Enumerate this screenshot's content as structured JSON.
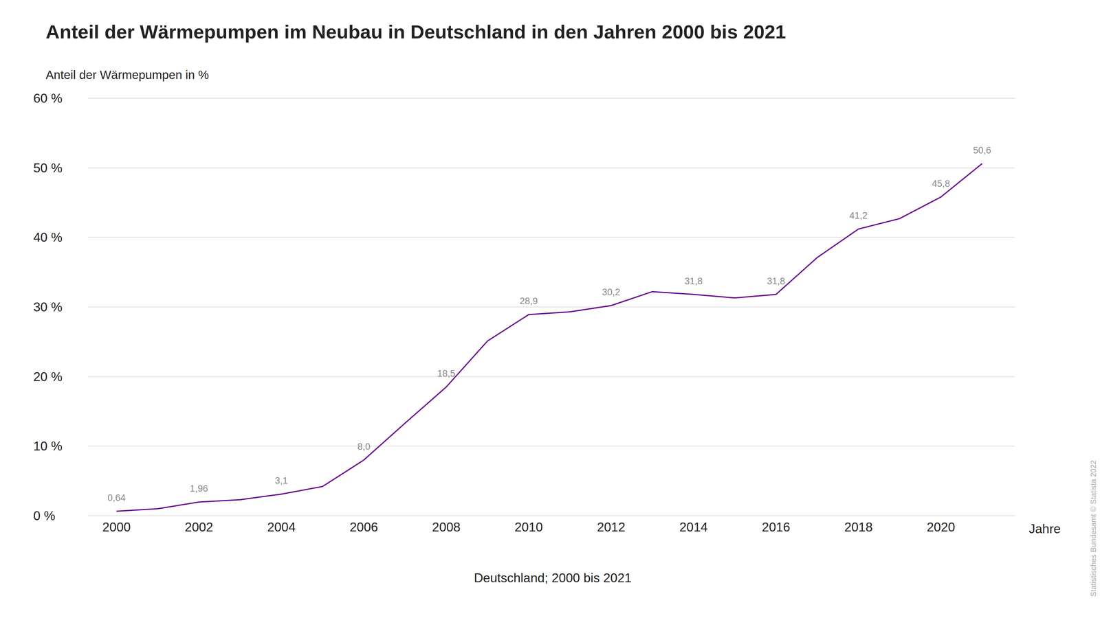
{
  "chart_data": {
    "type": "line",
    "title": "Anteil der Wärmepumpen im Neubau in Deutschland in den Jahren 2000 bis 2021",
    "y_label": "Anteil der Wärmepumpen in %",
    "x_label": "Jahre",
    "caption": "Deutschland; 2000 bis 2021",
    "source": "Statistisches Bundesamt © Statista 2022",
    "x": [
      2000,
      2001,
      2002,
      2003,
      2004,
      2005,
      2006,
      2007,
      2008,
      2009,
      2010,
      2011,
      2012,
      2013,
      2014,
      2015,
      2016,
      2017,
      2018,
      2019,
      2020,
      2021
    ],
    "values": [
      0.64,
      1.0,
      1.96,
      2.3,
      3.1,
      4.2,
      8.0,
      13.3,
      18.5,
      25.1,
      28.9,
      29.3,
      30.2,
      32.2,
      31.8,
      31.3,
      31.8,
      37.1,
      41.2,
      42.7,
      45.8,
      50.6
    ],
    "value_labels": [
      "0,64",
      null,
      "1,96",
      null,
      "3,1",
      null,
      "8,0",
      null,
      "18,5",
      null,
      "28,9",
      null,
      "30,2",
      null,
      "31,8",
      null,
      "31,8",
      null,
      "41,2",
      null,
      "45,8",
      "50,6"
    ],
    "data_labels": true,
    "color": "#68078f",
    "xlim": [
      1999.3,
      2021.8
    ],
    "xticks": [
      2000,
      2002,
      2004,
      2006,
      2008,
      2010,
      2012,
      2014,
      2016,
      2018,
      2020
    ],
    "ylim": [
      0,
      60
    ],
    "yticks": [
      {
        "value": 0,
        "label": "0 %"
      },
      {
        "value": 10,
        "label": "10 %"
      },
      {
        "value": 20,
        "label": "20 %"
      },
      {
        "value": 30,
        "label": "30 %"
      },
      {
        "value": 40,
        "label": "40 %"
      },
      {
        "value": 50,
        "label": "50 %"
      },
      {
        "value": 60,
        "label": "60 %"
      }
    ],
    "grid": true
  }
}
